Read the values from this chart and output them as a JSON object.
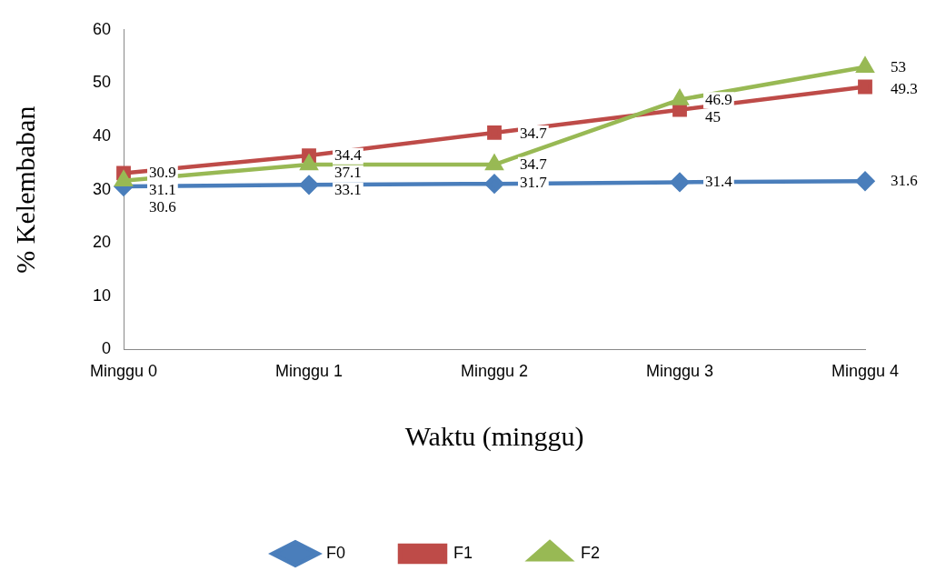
{
  "chart_data": {
    "type": "line",
    "xlabel": "Waktu (minggu)",
    "ylabel": "% Kelembaban",
    "categories": [
      "Minggu 0",
      "Minggu 1",
      "Minggu 2",
      "Minggu 3",
      "Minggu 4"
    ],
    "series": [
      {
        "name": "F0",
        "color": "#4a7ebb",
        "marker": "diamond",
        "values": [
          30.6,
          30.9,
          31.1,
          31.4,
          31.6
        ]
      },
      {
        "name": "F1",
        "color": "#be4b48",
        "marker": "square",
        "values": [
          33.1,
          36.4,
          40.7,
          45,
          49.3
        ]
      },
      {
        "name": "F2",
        "color": "#98b954",
        "marker": "triangle",
        "values": [
          31.7,
          34.7,
          34.7,
          46.9,
          53
        ]
      }
    ],
    "annotations": [
      {
        "text": "30.9",
        "x": "Minggu 0",
        "y": 33
      },
      {
        "text": "31.1",
        "x": "Minggu 0",
        "y": 31.8
      },
      {
        "text": "30.6",
        "x": "Minggu 0",
        "y": 30.4
      },
      {
        "text": "34.4",
        "x": "Minggu 1",
        "y": 36.3
      },
      {
        "text": "37.1",
        "x": "Minggu 1",
        "y": 34.3
      },
      {
        "text": "33.1",
        "x": "Minggu 1",
        "y": 30.7
      },
      {
        "text": "34.7",
        "x": "Minggu 2",
        "y": 40.5
      },
      {
        "text": "34.7",
        "x": "Minggu 2",
        "y": 34.6
      },
      {
        "text": "31.7",
        "x": "Minggu 2",
        "y": 31.2
      },
      {
        "text": "46.9",
        "x": "Minggu 3",
        "y": 46.8
      },
      {
        "text": "45",
        "x": "Minggu 3",
        "y": 44.7
      },
      {
        "text": "31.4",
        "x": "Minggu 3",
        "y": 31.3
      },
      {
        "text": "53",
        "x": "Minggu 4",
        "y": 52.8
      },
      {
        "text": "49.3",
        "x": "Minggu 4",
        "y": 48.8
      },
      {
        "text": "31.6",
        "x": "Minggu 4",
        "y": 31.5
      }
    ],
    "ylim": [
      0,
      60
    ],
    "yticks": [
      0,
      10,
      20,
      30,
      40,
      50,
      60
    ],
    "grid": false,
    "legend": "bottom",
    "line_style": "solid"
  }
}
